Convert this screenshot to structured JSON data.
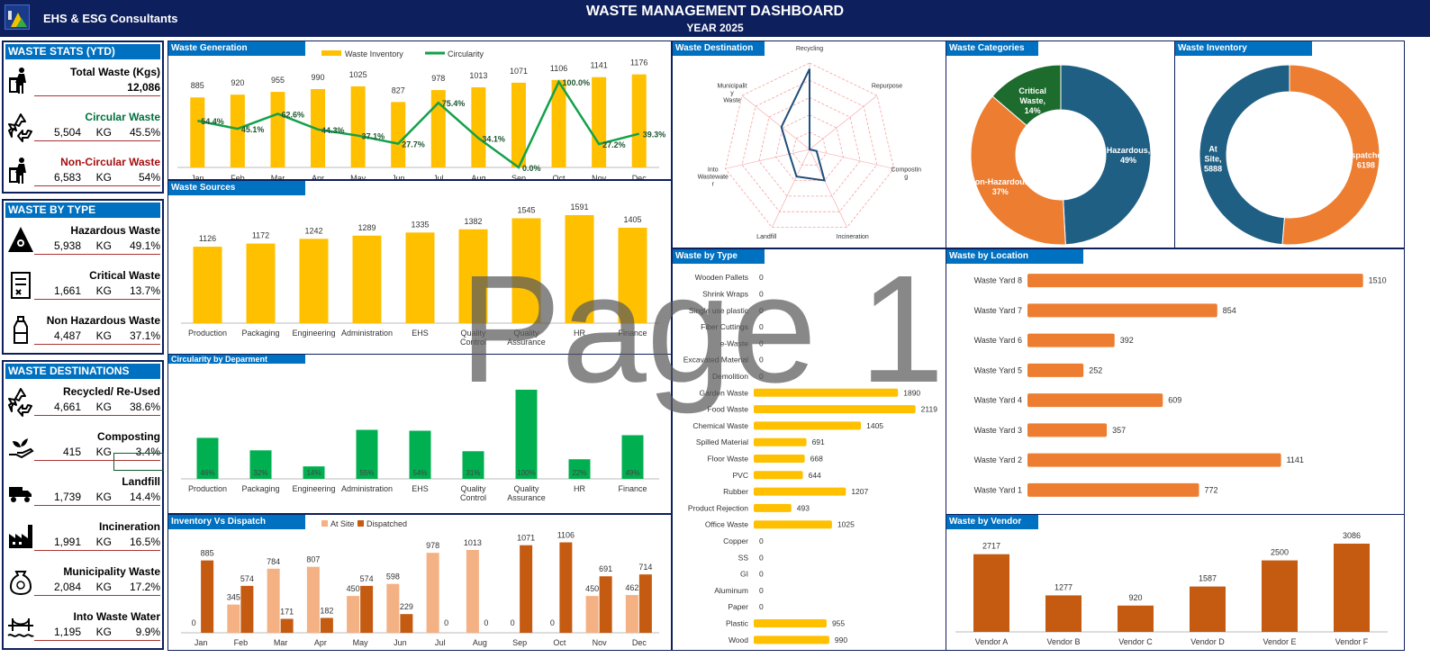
{
  "header": {
    "brand": "EHS & ESG Consultants",
    "title": "WASTE MANAGEMENT DASHBOARD",
    "year": "YEAR 2025",
    "watermark": "Page 1"
  },
  "waste_stats": {
    "title": "WASTE STATS (YTD)",
    "total_label": "Total Waste (Kgs)",
    "total_value": "12,086",
    "items": [
      {
        "label": "Circular Waste",
        "value": "5,504",
        "unit": "KG",
        "pct": "45.5%",
        "color": "#00703c",
        "icon": "recycle-icon"
      },
      {
        "label": "Non-Circular Waste",
        "value": "6,583",
        "unit": "KG",
        "pct": "54%",
        "color": "#a50f0f",
        "icon": "trash-person-icon"
      }
    ]
  },
  "waste_by_type": {
    "title": "WASTE BY TYPE",
    "items": [
      {
        "label": "Hazardous Waste",
        "value": "5,938",
        "unit": "KG",
        "pct": "49.1%",
        "icon": "biohazard-icon"
      },
      {
        "label": "Critical Waste",
        "value": "1,661",
        "unit": "KG",
        "pct": "13.7%",
        "icon": "document-icon"
      },
      {
        "label": "Non Hazardous Waste",
        "value": "4,487",
        "unit": "KG",
        "pct": "37.1%",
        "icon": "bottle-icon"
      }
    ]
  },
  "waste_destinations": {
    "title": "WASTE DESTINATIONS",
    "items": [
      {
        "label": "Recycled/ Re-Used",
        "value": "4,661",
        "unit": "KG",
        "pct": "38.6%",
        "icon": "recycle-icon"
      },
      {
        "label": "Composting",
        "value": "415",
        "unit": "KG",
        "pct": "3.4%",
        "icon": "plant-hand-icon"
      },
      {
        "label": "Landfill",
        "value": "1,739",
        "unit": "KG",
        "pct": "14.4%",
        "icon": "dump-truck-icon"
      },
      {
        "label": "Incineration",
        "value": "1,991",
        "unit": "KG",
        "pct": "16.5%",
        "icon": "factory-icon"
      },
      {
        "label": "Municipality Waste",
        "value": "2,084",
        "unit": "KG",
        "pct": "17.2%",
        "icon": "garbage-bag-icon"
      },
      {
        "label": "Into Waste Water",
        "value": "1,195",
        "unit": "KG",
        "pct": "9.9%",
        "icon": "bridge-water-icon"
      }
    ]
  },
  "chart_data": [
    {
      "id": "waste_generation",
      "type": "bar",
      "title": "Waste Generation",
      "categories": [
        "Jan",
        "Feb",
        "Mar",
        "Apr",
        "May",
        "Jun",
        "Jul",
        "Aug",
        "Sep",
        "Oct",
        "Nov",
        "Dec"
      ],
      "series": [
        {
          "name": "Waste Inventory",
          "type": "bar",
          "values": [
            885,
            920,
            955,
            990,
            1025,
            827,
            978,
            1013,
            1071,
            1106,
            1141,
            1176
          ],
          "color": "#ffc000"
        },
        {
          "name": "Circularity",
          "type": "line",
          "values": [
            54.4,
            45.1,
            62.6,
            44.3,
            37.1,
            27.7,
            75.4,
            34.1,
            0.0,
            100.0,
            27.2,
            39.3
          ],
          "labels": [
            "54.4%",
            "45.1%",
            "62.6%",
            "44.3%",
            "37.1%",
            "27.7%",
            "75.4%",
            "34.1%",
            "0.0%",
            "100.0%",
            "27.2%",
            "39.3%"
          ],
          "color": "#13a14a"
        }
      ],
      "ylim": [
        0,
        1300
      ],
      "y2lim": [
        0,
        120
      ],
      "legend": "top"
    },
    {
      "id": "waste_sources",
      "type": "bar",
      "title": "Waste Sources",
      "categories": [
        "Production",
        "Packaging",
        "Engineering",
        "Administration",
        "EHS",
        "Quality Control",
        "Quality Assurance",
        "HR",
        "Finance"
      ],
      "values": [
        1126,
        1172,
        1242,
        1289,
        1335,
        1382,
        1545,
        1591,
        1405
      ],
      "color": "#ffc000",
      "ylim": [
        0,
        1750
      ]
    },
    {
      "id": "circularity_by_department",
      "type": "bar",
      "title": "Circularity by Deparment",
      "categories": [
        "Production",
        "Packaging",
        "Engineering",
        "Administration",
        "EHS",
        "Quality Control",
        "Quality Assurance",
        "HR",
        "Finance"
      ],
      "values": [
        46,
        32,
        14,
        55,
        54,
        31,
        100,
        22,
        49
      ],
      "labels": [
        "46%",
        "32%",
        "14%",
        "55%",
        "54%",
        "31%",
        "100%",
        "22%",
        "49%"
      ],
      "color": "#00b050",
      "ylim": [
        0,
        105
      ]
    },
    {
      "id": "inventory_vs_dispatch",
      "type": "bar",
      "title": "Inventory Vs Dispatch",
      "categories": [
        "Jan",
        "Feb",
        "Mar",
        "Apr",
        "May",
        "Jun",
        "Jul",
        "Aug",
        "Sep",
        "Oct",
        "Nov",
        "Dec"
      ],
      "series": [
        {
          "name": "At Site",
          "values": [
            0,
            345,
            784,
            807,
            450,
            598,
            978,
            1013,
            0,
            0,
            450,
            462
          ],
          "color": "#f4b183"
        },
        {
          "name": "Dispatched",
          "values": [
            885,
            574,
            171,
            182,
            574,
            229,
            0,
            0,
            1071,
            1106,
            691,
            714
          ],
          "color": "#c55a11"
        }
      ],
      "ylim": [
        0,
        1200
      ],
      "legend": "top"
    },
    {
      "id": "waste_destination",
      "type": "radar",
      "title": "Waste Destination",
      "axes": [
        "Recycling",
        "Repurpose",
        "Composting",
        "Incineration",
        "Landfill",
        "Into Wastewater",
        "Municipality Waste"
      ],
      "axis_labels": [
        "Recycling",
        "Repurpose",
        "Compostin g",
        "Incineration",
        "Landfill",
        "Into Wastewate r",
        "Municipalit y Waste"
      ],
      "values": [
        4661,
        0,
        415,
        1991,
        1739,
        1195,
        2084
      ],
      "rmax": 5000,
      "color": "#1f4e79"
    },
    {
      "id": "waste_categories",
      "type": "pie",
      "title": "Waste Categories",
      "slices": [
        {
          "label": "Hazardous, 49%",
          "value": 49.1,
          "color": "#1f5f84"
        },
        {
          "label": "Non-Hazardous, 37%",
          "value": 37.1,
          "color": "#ed7d31"
        },
        {
          "label": "Critical Waste, 14%",
          "value": 13.7,
          "color": "#1e6b2e"
        }
      ]
    },
    {
      "id": "waste_inventory",
      "type": "pie",
      "title": "Waste Inventory",
      "slices": [
        {
          "label": "Dispatched, 6198",
          "value": 6198,
          "color": "#ed7d31"
        },
        {
          "label": "At Site, 5888",
          "value": 5888,
          "color": "#1f5f84"
        }
      ]
    },
    {
      "id": "waste_by_type",
      "type": "bar",
      "orientation": "horizontal",
      "title": "Waste by Type",
      "categories": [
        "Wooden Pallets",
        "Shrink Wraps",
        "Single use plastic",
        "Fiber Cuttings",
        "e-Waste",
        "Excavated Material",
        "Demolition",
        "Garden Waste",
        "Food Waste",
        "Chemical Waste",
        "Spilled Material",
        "Floor Waste",
        "PVC",
        "Rubber",
        "Product Rejection",
        "Office Waste",
        "Copper",
        "SS",
        "GI",
        "Aluminum",
        "Paper",
        "Plastic",
        "Wood"
      ],
      "values": [
        0,
        0,
        0,
        0,
        0,
        0,
        0,
        1890,
        2119,
        1405,
        691,
        668,
        644,
        1207,
        493,
        1025,
        0,
        0,
        0,
        0,
        0,
        955,
        990
      ],
      "color": "#ffc000",
      "xlim": [
        0,
        2300
      ]
    },
    {
      "id": "waste_by_location",
      "type": "bar",
      "orientation": "horizontal",
      "title": "Waste by Location",
      "categories": [
        "Waste Yard 8",
        "Waste Yard 7",
        "Waste Yard 6",
        "Waste Yard 5",
        "Waste Yard 4",
        "Waste Yard 3",
        "Waste Yard 2",
        "Waste Yard 1"
      ],
      "values": [
        1510,
        854,
        392,
        252,
        609,
        357,
        1141,
        772
      ],
      "color": "#ed7d31",
      "xlim": [
        0,
        1560
      ]
    },
    {
      "id": "waste_by_vendor",
      "type": "bar",
      "title": "Waste by Vendor",
      "categories": [
        "Vendor A",
        "Vendor B",
        "Vendor C",
        "Vendor D",
        "Vendor E",
        "Vendor F"
      ],
      "values": [
        2717,
        1277,
        920,
        1587,
        2500,
        3086
      ],
      "color": "#c55a11",
      "ylim": [
        0,
        3400
      ]
    }
  ]
}
